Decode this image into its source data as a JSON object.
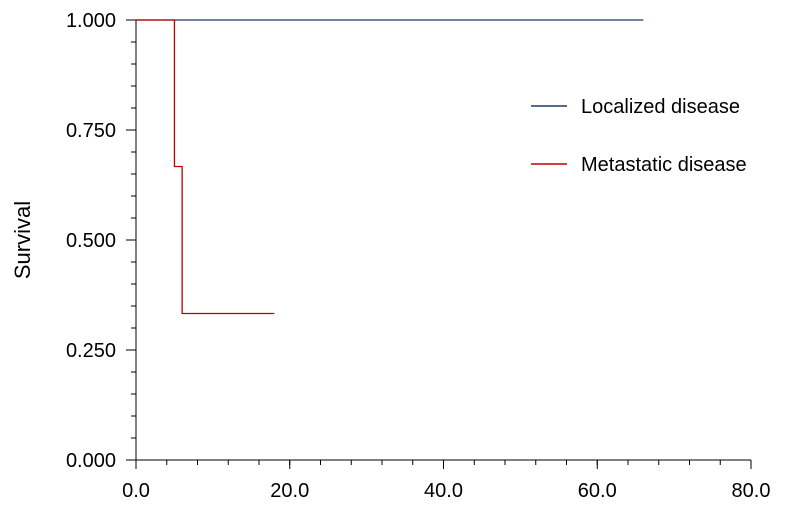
{
  "chart_data": {
    "type": "line",
    "step": true,
    "title": "",
    "xlabel": "",
    "ylabel": "Survival",
    "xlim": [
      0,
      80
    ],
    "ylim": [
      0,
      1
    ],
    "x_ticks": [
      0,
      20,
      40,
      60,
      80
    ],
    "x_tick_labels": [
      "0.0",
      "20.0",
      "40.0",
      "60.0",
      "80.0"
    ],
    "x_minor_step": 4,
    "y_ticks": [
      0,
      0.25,
      0.5,
      0.75,
      1.0
    ],
    "y_tick_labels": [
      "0.000",
      "0.250",
      "0.500",
      "0.750",
      "1.000"
    ],
    "y_minor_step": 0.05,
    "grid": false,
    "legend_position": "right",
    "series": [
      {
        "name": "Localized disease",
        "color": "#1f3864",
        "x": [
          0,
          66
        ],
        "y": [
          1.0,
          1.0
        ]
      },
      {
        "name": "Metastatic disease",
        "color": "#c00000",
        "x": [
          0,
          5,
          6,
          18
        ],
        "y": [
          1.0,
          0.667,
          0.333,
          0.333
        ]
      }
    ]
  }
}
